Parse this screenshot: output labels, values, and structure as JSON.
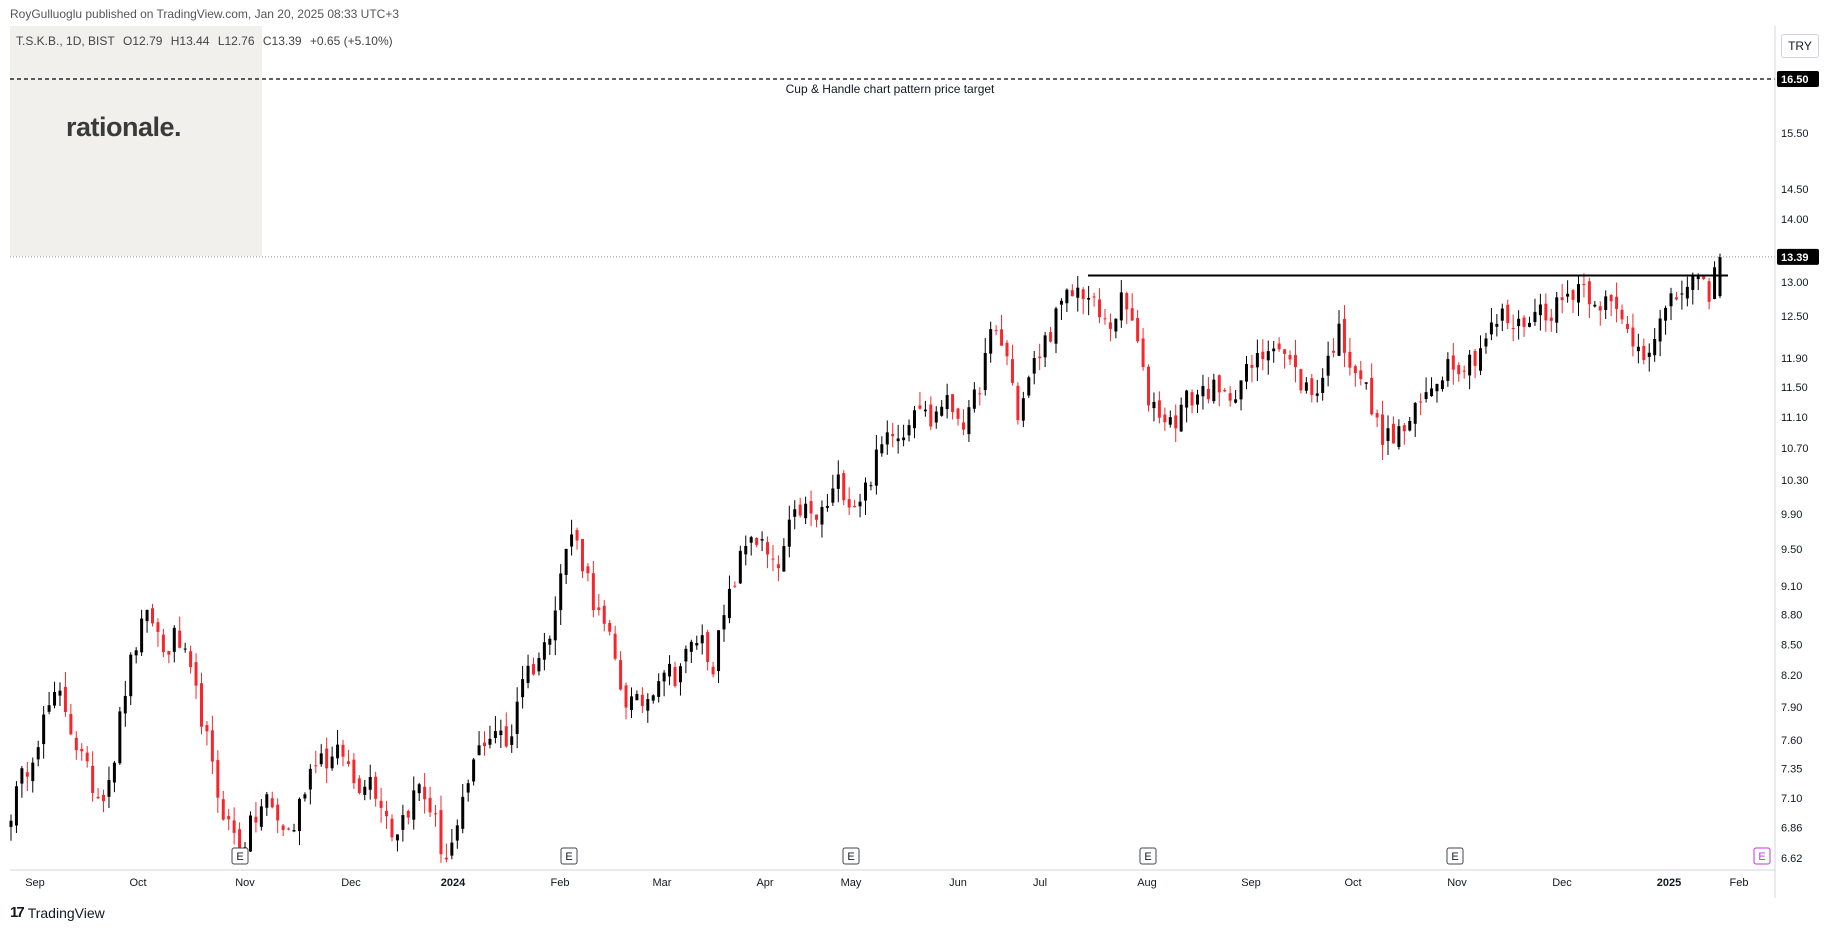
{
  "header": {
    "publisher": "RoyGulluoglu published on TradingView.com, Jan 20, 2025 08:33 UTC+3",
    "symbol": "T.S.K.B., 1D, BIST",
    "open": "O12.79",
    "high": "H13.44",
    "low": "L12.76",
    "close": "C13.39",
    "change": "+0.65 (+5.10%)"
  },
  "watermark": "rationale.",
  "currency": "TRY",
  "footer": {
    "logo_mark": "17",
    "logo_text": "TradingView"
  },
  "colors": {
    "up": "#000000",
    "down": "#f7262b",
    "target_line": "#000000",
    "resistance_line": "#000000",
    "price_label_bg": "#000000"
  },
  "chart_data": {
    "type": "candlestick",
    "ylim": [
      6.62,
      17.7
    ],
    "y_ticks": [
      "15.50",
      "14.50",
      "14.00",
      "13.00",
      "12.50",
      "11.90",
      "11.50",
      "11.10",
      "10.70",
      "10.30",
      "9.90",
      "9.50",
      "9.10",
      "8.80",
      "8.50",
      "8.20",
      "7.90",
      "7.60",
      "7.35",
      "7.10",
      "6.86",
      "6.62"
    ],
    "x_labels": [
      "Sep",
      "Oct",
      "Nov",
      "Dec",
      "2024",
      "Feb",
      "Mar",
      "Apr",
      "May",
      "Jun",
      "Jul",
      "Aug",
      "Sep",
      "Oct",
      "Nov",
      "Dec",
      "2025",
      "Feb"
    ],
    "bold_x_labels": [
      "2024",
      "2025"
    ],
    "earnings_markers": [
      "E",
      "E",
      "E",
      "E",
      "E",
      "E"
    ],
    "target": {
      "value": 16.5,
      "label": "16.50",
      "annotation": "Cup & Handle chart pattern price target"
    },
    "last_price": {
      "value": 13.39,
      "label": "13.39"
    },
    "resistance_value": 13.1,
    "close_series": [
      7.0,
      7.3,
      7.6,
      7.9,
      8.0,
      7.6,
      7.3,
      7.1,
      7.4,
      8.1,
      8.6,
      8.8,
      8.4,
      8.6,
      8.2,
      7.8,
      7.2,
      6.9,
      6.7,
      6.9,
      7.1,
      6.9,
      6.8,
      7.2,
      7.5,
      7.4,
      7.5,
      7.2,
      7.3,
      7.1,
      6.8,
      7.0,
      7.2,
      7.0,
      6.6,
      6.8,
      7.3,
      7.6,
      7.7,
      7.5,
      8.2,
      8.3,
      8.5,
      9.2,
      9.7,
      9.3,
      8.8,
      8.5,
      8.0,
      7.9,
      8.0,
      8.3,
      8.2,
      8.4,
      8.6,
      8.3,
      8.8,
      9.3,
      9.7,
      9.5,
      9.2,
      9.7,
      10.0,
      9.8,
      10.0,
      10.3,
      10.0,
      10.2,
      10.6,
      11.0,
      10.9,
      11.4,
      11.0,
      11.3,
      11.2,
      11.0,
      11.6,
      12.3,
      12.0,
      11.1,
      11.7,
      12.1,
      12.5,
      12.8,
      12.9,
      12.6,
      12.3,
      12.7,
      12.4,
      11.4,
      11.2,
      11.0,
      11.3,
      11.4,
      11.5,
      11.3,
      11.5,
      11.7,
      11.9,
      12.2,
      11.9,
      11.6,
      11.4,
      11.7,
      12.3,
      11.9,
      11.6,
      11.0,
      10.8,
      10.9,
      11.1,
      11.4,
      11.7,
      11.9,
      11.8,
      12.0,
      12.3,
      12.5,
      12.3,
      12.5,
      12.6,
      12.6,
      12.8,
      13.0,
      12.8,
      12.7,
      12.5,
      12.2,
      12.0,
      12.3,
      12.6,
      12.9,
      13.0,
      12.8,
      13.39
    ]
  }
}
